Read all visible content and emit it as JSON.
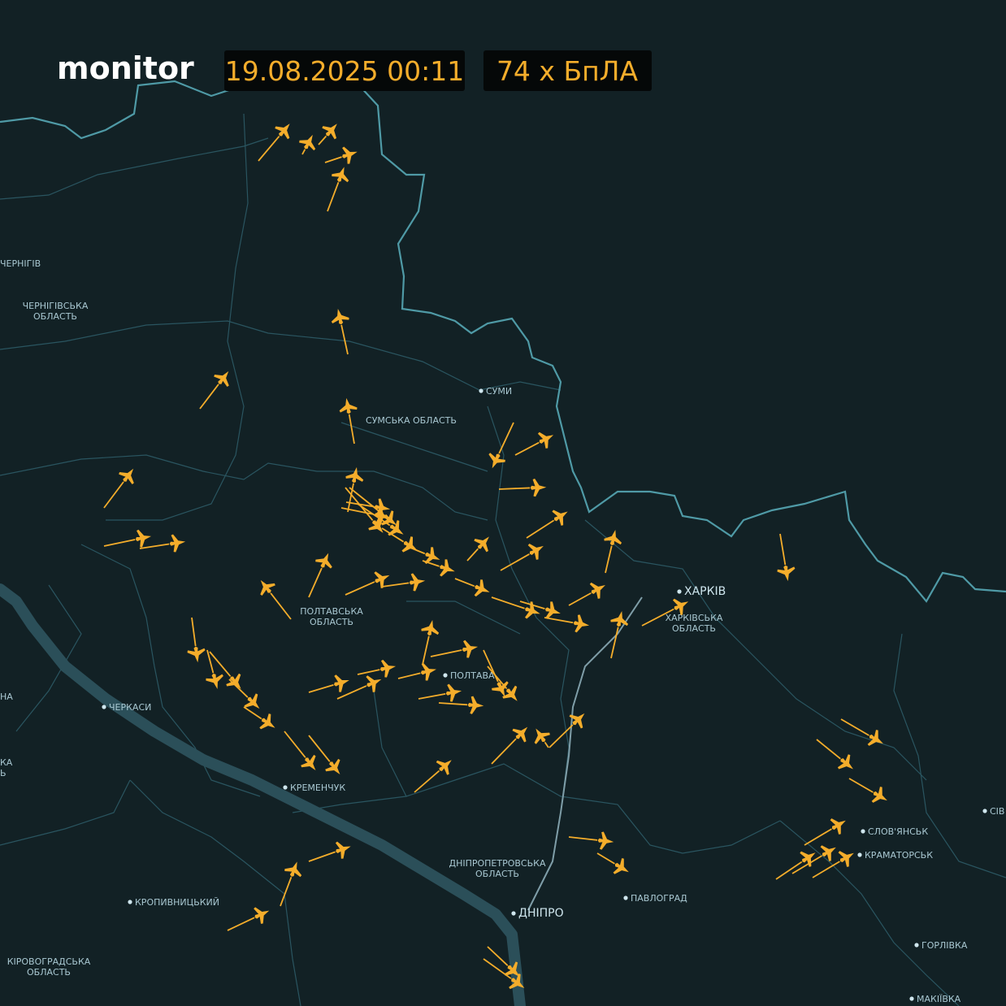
{
  "header": {
    "brand": "monitor",
    "timestamp": "19.08.2025 00:11",
    "count": "74 х БпЛА"
  },
  "labels": [
    {
      "lines": [
        "ЧЕРНІГІВ"
      ]
    },
    {
      "lines": [
        "ЧЕРНІГІВСЬКА",
        "ОБЛАСТЬ"
      ]
    },
    {
      "lines": [
        "СУМИ"
      ]
    },
    {
      "lines": [
        "СУМСЬКА ОБЛАСТЬ"
      ]
    },
    {
      "lines": [
        "ПОЛТАВСЬКА",
        "ОБЛАСТЬ"
      ]
    },
    {
      "lines": [
        "ХАРКІВ"
      ]
    },
    {
      "lines": [
        "ХАРКІВСЬКА",
        "ОБЛАСТЬ"
      ]
    },
    {
      "lines": [
        "ПОЛТАВА"
      ]
    },
    {
      "lines": [
        "НА"
      ]
    },
    {
      "lines": [
        "ЧЕРКАСИ"
      ]
    },
    {
      "lines": [
        "КА",
        "Ь"
      ]
    },
    {
      "lines": [
        "КРЕМЕНЧУК"
      ]
    },
    {
      "lines": [
        "ДНІПРОПЕТРОВСЬКА",
        "ОБЛАСТЬ"
      ]
    },
    {
      "lines": [
        "ДНІПРО"
      ]
    },
    {
      "lines": [
        "ПАВЛОГРАД"
      ]
    },
    {
      "lines": [
        "КРОПИВНИЦЬКИЙ"
      ]
    },
    {
      "lines": [
        "КІРОВОГРАДСЬКА",
        "ОБЛАСТЬ"
      ]
    },
    {
      "lines": [
        "СЛОВ'ЯНСЬК"
      ]
    },
    {
      "lines": [
        "КРАМАТОРСЬК"
      ]
    },
    {
      "lines": [
        "ГОРЛІВКА"
      ]
    },
    {
      "lines": [
        "МАКІЇВКА"
      ]
    },
    {
      "lines": [
        "СІВ"
      ]
    }
  ]
}
